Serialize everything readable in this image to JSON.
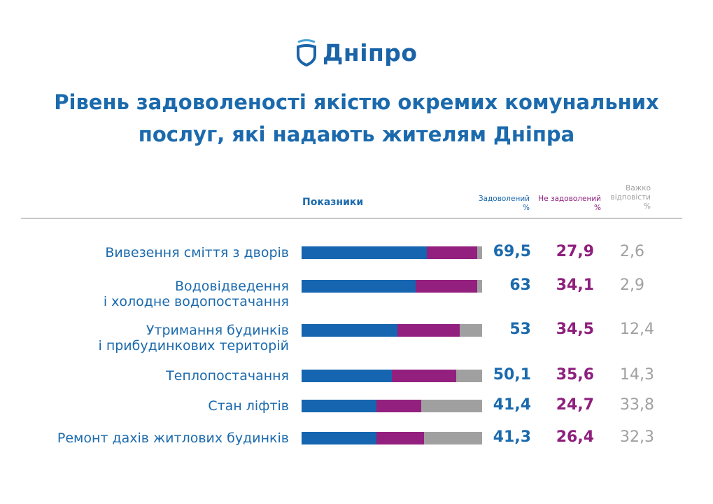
{
  "logo": {
    "text": "Дніпро"
  },
  "chart_data": {
    "type": "bar",
    "orientation": "horizontal",
    "stacked": true,
    "title": "Рівень задоволеності якістю окремих комунальних послуг, які надають жителям Дніпра",
    "title_lines": [
      "Рівень задоволеності якістю окремих комунальних",
      "послуг, які надають жителям Дніпра"
    ],
    "category_header": "Показники",
    "categories": [
      [
        "Вивезення сміття з дворів"
      ],
      [
        "Водовідведення",
        "і холодне водопостачання"
      ],
      [
        "Утримання будинків",
        "і прибудинкових територій"
      ],
      [
        "Теплопостачання"
      ],
      [
        "Стан ліфтів"
      ],
      [
        "Ремонт дахів житлових будинків"
      ]
    ],
    "series": [
      {
        "name": "Задоволений %",
        "header": [
          "Задоволений",
          "%"
        ],
        "color": "#1565b0",
        "values": [
          69.5,
          63,
          53,
          50.1,
          41.4,
          41.3
        ],
        "labels": [
          "69,5",
          "63",
          "53",
          "50,1",
          "41,4",
          "41,3"
        ]
      },
      {
        "name": "Не задоволений %",
        "header": [
          "Не задоволений",
          "%"
        ],
        "color": "#93207f",
        "values": [
          27.9,
          34.1,
          34.5,
          35.6,
          24.7,
          26.4
        ],
        "labels": [
          "27,9",
          "34,1",
          "34,5",
          "35,6",
          "24,7",
          "26,4"
        ]
      },
      {
        "name": "Важко відповісти %",
        "header": [
          "Важко",
          "відповісти",
          "%"
        ],
        "color": "#a0a0a0",
        "values": [
          2.6,
          2.9,
          12.4,
          14.3,
          33.8,
          32.3
        ],
        "labels": [
          "2,6",
          "2,9",
          "12,4",
          "14,3",
          "33,8",
          "32,3"
        ]
      }
    ],
    "xlim": [
      0,
      100
    ],
    "grid": false
  }
}
